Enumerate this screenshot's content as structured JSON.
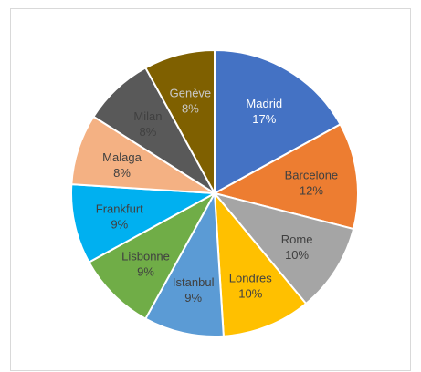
{
  "chart_data": {
    "type": "pie",
    "title": "",
    "start": "12 o'clock",
    "direction": "clockwise",
    "legend": "none",
    "slices": [
      {
        "name": "Madrid",
        "value": 17,
        "label": "17%",
        "color": "#4472c4",
        "text_color": "#ffffff"
      },
      {
        "name": "Barcelone",
        "value": 12,
        "label": "12%",
        "color": "#ed7d31",
        "text_color": "#404040"
      },
      {
        "name": "Rome",
        "value": 10,
        "label": "10%",
        "color": "#a5a5a5",
        "text_color": "#404040"
      },
      {
        "name": "Londres",
        "value": 10,
        "label": "10%",
        "color": "#ffc000",
        "text_color": "#404040"
      },
      {
        "name": "Istanbul",
        "value": 9,
        "label": "9%",
        "color": "#5b9bd5",
        "text_color": "#404040"
      },
      {
        "name": "Lisbonne",
        "value": 9,
        "label": "9%",
        "color": "#70ad47",
        "text_color": "#404040"
      },
      {
        "name": "Frankfurt",
        "value": 9,
        "label": "9%",
        "color": "#00b0f0",
        "text_color": "#404040"
      },
      {
        "name": "Malaga",
        "value": 8,
        "label": "8%",
        "color": "#f4b183",
        "text_color": "#404040"
      },
      {
        "name": "Milan",
        "value": 8,
        "label": "8%",
        "color": "#595959",
        "text_color": "#404040"
      },
      {
        "name": "Genève",
        "value": 8,
        "label": "8%",
        "color": "#7f6000",
        "text_color": "#c9c9c9"
      }
    ]
  }
}
